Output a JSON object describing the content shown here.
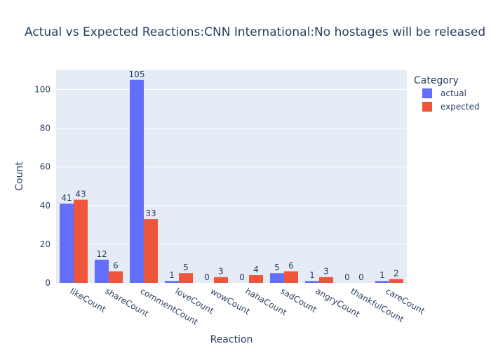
{
  "chart_data": {
    "type": "bar",
    "title": "Actual vs Expected Reactions:CNN International:No hostages will be released",
    "xlabel": "Reaction",
    "ylabel": "Count",
    "ylim": [
      0,
      110
    ],
    "yticks": [
      0,
      20,
      40,
      60,
      80,
      100
    ],
    "grid": true,
    "legend": {
      "title": "Category",
      "placement": "top-right"
    },
    "categories": [
      "likeCount",
      "shareCount",
      "commentCount",
      "loveCount",
      "wowCount",
      "hahaCount",
      "sadCount",
      "angryCount",
      "thankfulCount",
      "careCount"
    ],
    "series": [
      {
        "name": "actual",
        "color": "#636efa",
        "values": [
          41,
          12,
          105,
          1,
          0,
          0,
          5,
          1,
          0,
          1
        ]
      },
      {
        "name": "expected",
        "color": "#ef553b",
        "values": [
          43,
          6,
          33,
          5,
          3,
          4,
          6,
          3,
          0,
          2
        ]
      }
    ]
  }
}
